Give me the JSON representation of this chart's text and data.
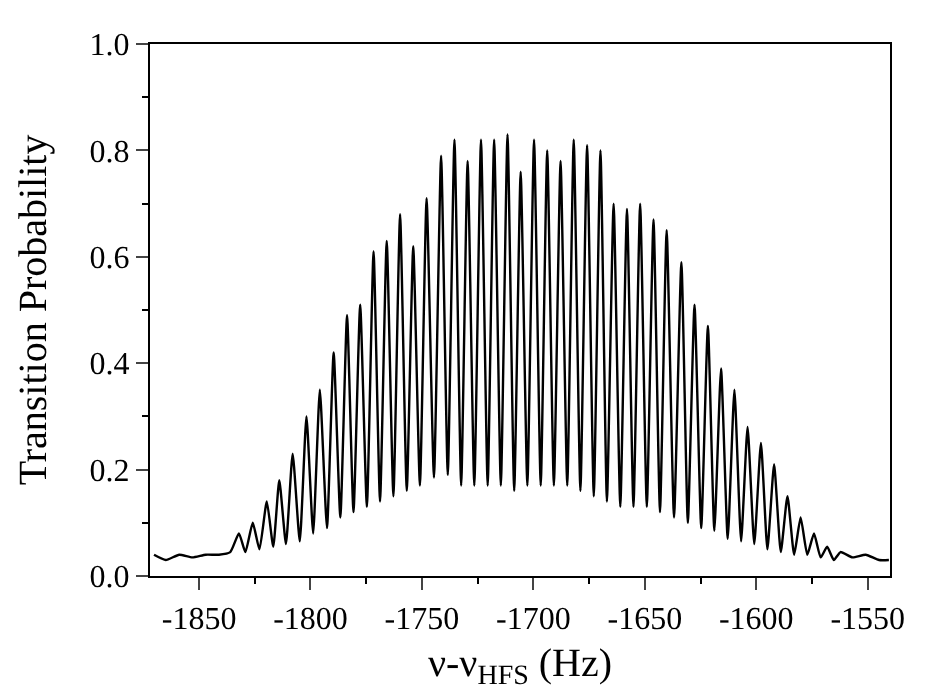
{
  "chart_data": {
    "type": "line",
    "xlabel": "ν-ν$_{HFS}$ (Hz)",
    "ylabel": "Transition Probability",
    "x": [
      -1870.2,
      -1864.9,
      -1858.9,
      -1853.0,
      -1847.0,
      -1841.1,
      -1836.0,
      -1832.1,
      -1829.2,
      -1825.9,
      -1822.9,
      -1819.6,
      -1816.7,
      -1814.0,
      -1811.0,
      -1808.0,
      -1804.8,
      -1801.8,
      -1798.8,
      -1795.8,
      -1792.6,
      -1789.6,
      -1786.6,
      -1783.6,
      -1780.7,
      -1777.7,
      -1774.7,
      -1771.7,
      -1768.8,
      -1765.8,
      -1762.8,
      -1759.8,
      -1756.8,
      -1753.9,
      -1750.9,
      -1747.9,
      -1744.6,
      -1741.4,
      -1738.4,
      -1735.4,
      -1732.4,
      -1729.5,
      -1726.5,
      -1723.5,
      -1720.5,
      -1717.6,
      -1714.6,
      -1711.6,
      -1708.6,
      -1705.7,
      -1702.7,
      -1699.7,
      -1696.7,
      -1693.8,
      -1690.8,
      -1687.8,
      -1684.8,
      -1681.9,
      -1678.9,
      -1675.9,
      -1672.9,
      -1669.9,
      -1667.0,
      -1664.0,
      -1661.0,
      -1658.0,
      -1655.1,
      -1652.1,
      -1649.1,
      -1646.1,
      -1643.2,
      -1640.2,
      -1636.9,
      -1633.6,
      -1630.7,
      -1627.7,
      -1624.7,
      -1621.7,
      -1618.8,
      -1615.8,
      -1612.8,
      -1609.8,
      -1606.8,
      -1603.9,
      -1600.9,
      -1597.9,
      -1595.0,
      -1592.0,
      -1589.0,
      -1586.0,
      -1583.0,
      -1580.1,
      -1577.1,
      -1574.1,
      -1571.1,
      -1568.2,
      -1565.2,
      -1562.2,
      -1556.8,
      -1550.9,
      -1544.9,
      -1540.5
    ],
    "series": [
      {
        "color": "#000000",
        "values": [
          0.04,
          0.03,
          0.04,
          0.035,
          0.04,
          0.04,
          0.045,
          0.08,
          0.045,
          0.1,
          0.05,
          0.14,
          0.055,
          0.18,
          0.06,
          0.23,
          0.065,
          0.3,
          0.08,
          0.35,
          0.09,
          0.42,
          0.11,
          0.49,
          0.12,
          0.51,
          0.13,
          0.61,
          0.14,
          0.63,
          0.15,
          0.68,
          0.16,
          0.62,
          0.17,
          0.71,
          0.185,
          0.79,
          0.19,
          0.82,
          0.17,
          0.78,
          0.17,
          0.82,
          0.17,
          0.82,
          0.17,
          0.83,
          0.16,
          0.76,
          0.17,
          0.82,
          0.17,
          0.8,
          0.17,
          0.78,
          0.17,
          0.82,
          0.16,
          0.81,
          0.15,
          0.8,
          0.14,
          0.7,
          0.13,
          0.69,
          0.13,
          0.7,
          0.13,
          0.67,
          0.12,
          0.65,
          0.11,
          0.59,
          0.1,
          0.51,
          0.09,
          0.47,
          0.085,
          0.39,
          0.07,
          0.35,
          0.065,
          0.28,
          0.06,
          0.25,
          0.05,
          0.21,
          0.045,
          0.15,
          0.04,
          0.11,
          0.04,
          0.08,
          0.035,
          0.055,
          0.03,
          0.045,
          0.035,
          0.04,
          0.03,
          0.03
        ]
      }
    ],
    "xlim": [
      -1872,
      -1540
    ],
    "xticks": [
      -1850,
      -1800,
      -1750,
      -1700,
      -1650,
      -1600,
      -1550,
      {
        "value": -1825,
        "label": null
      },
      {
        "value": -1775,
        "label": null
      },
      {
        "value": -1725,
        "label": null
      },
      {
        "value": -1675,
        "label": null
      },
      {
        "value": -1625,
        "label": null
      },
      {
        "value": -1575,
        "label": null
      }
    ],
    "ylim": [
      0,
      1
    ],
    "yticks": [
      {
        "value": 0,
        "label": "0.0"
      },
      {
        "value": 0.2,
        "label": "0.2"
      },
      {
        "value": 0.4,
        "label": "0.4"
      },
      {
        "value": 0.6,
        "label": "0.6"
      },
      {
        "value": 0.8,
        "label": "0.8"
      },
      {
        "value": 1,
        "label": "1.0"
      },
      {
        "value": 0.1,
        "label": null
      },
      {
        "value": 0.3,
        "label": null
      },
      {
        "value": 0.5,
        "label": null
      },
      {
        "value": 0.7,
        "label": null
      },
      {
        "value": 0.9,
        "label": null
      }
    ],
    "marker": "none",
    "line_style": "solid"
  }
}
